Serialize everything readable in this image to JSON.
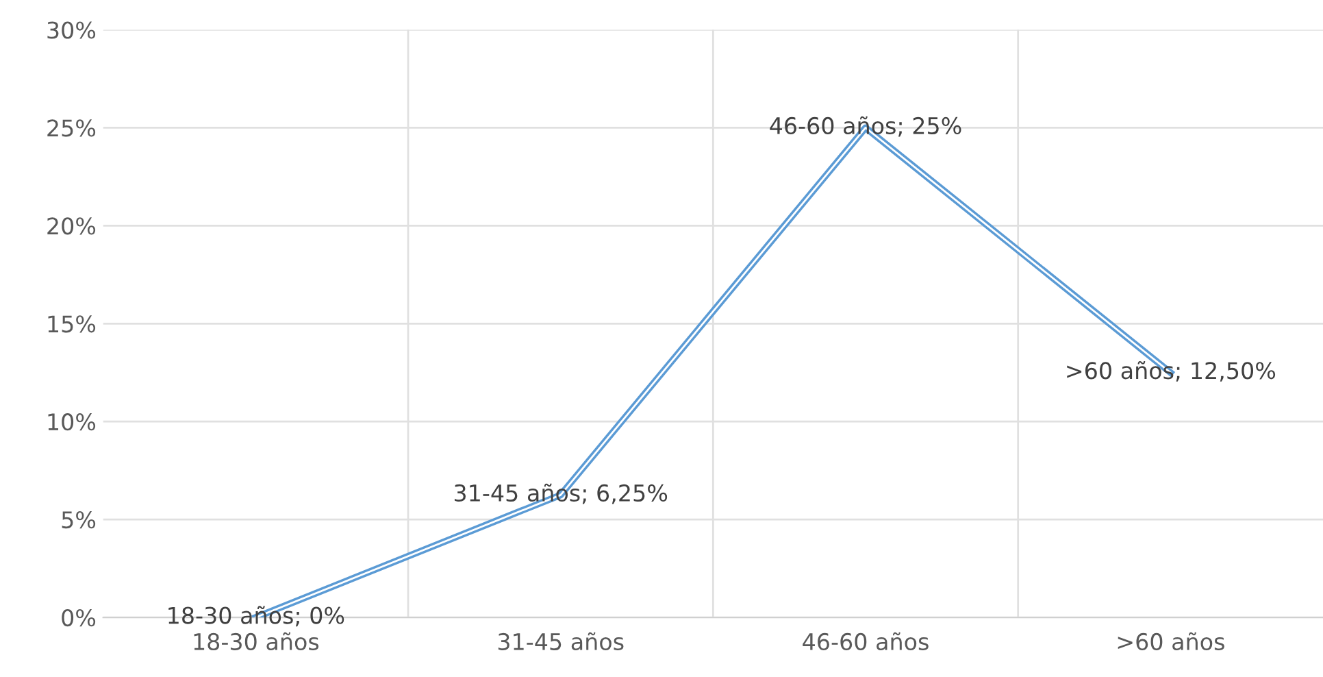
{
  "chart_data": {
    "type": "line",
    "categories": [
      "18-30 años",
      "31-45 años",
      "46-60 años",
      ">60 años"
    ],
    "series": [
      {
        "color": "#5b9bd5",
        "values": [
          0,
          6.25,
          25,
          12.5
        ],
        "value_labels": [
          "18-30 años; 0%",
          "31-45 años; 6,25%",
          "46-60 años; 25%",
          ">60 años; 12,50%"
        ]
      }
    ],
    "ylim": [
      0,
      30
    ],
    "yticks": [
      {
        "value": 0,
        "label": "0%"
      },
      {
        "value": 5,
        "label": "5%"
      },
      {
        "value": 10,
        "label": "10%"
      },
      {
        "value": 15,
        "label": "15%"
      },
      {
        "value": 20,
        "label": "20%"
      },
      {
        "value": 25,
        "label": "25%"
      },
      {
        "value": 30,
        "label": "30%"
      }
    ],
    "grid": true,
    "marker": "none",
    "line_style": "solid"
  }
}
